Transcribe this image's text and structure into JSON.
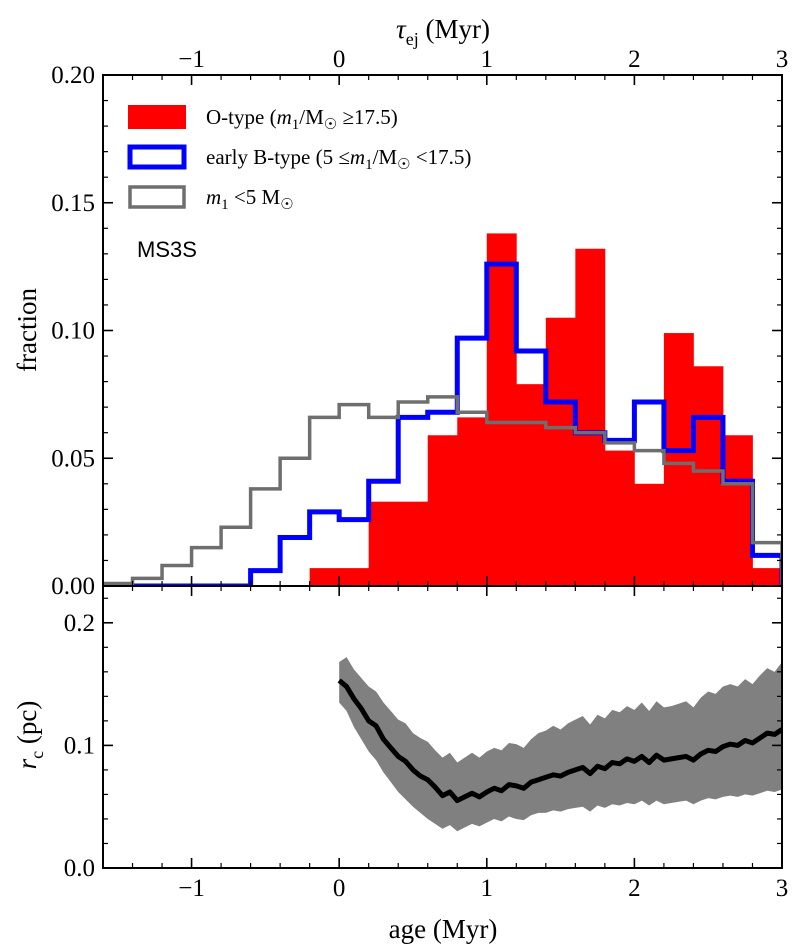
{
  "chart_data": [
    {
      "type": "bar",
      "name": "top-histogram",
      "xlabel_top": "τ_ej (Myr)",
      "ylabel": "fraction",
      "xlim": [
        -1.6,
        3.0
      ],
      "ylim": [
        0.0,
        0.2
      ],
      "yticks": [
        0.0,
        0.05,
        0.1,
        0.15,
        0.2
      ],
      "ytick_labels": [
        "0.00",
        "0.05",
        "0.10",
        "0.15",
        "0.20"
      ],
      "top_xticks": [
        -1,
        0,
        1,
        2,
        3
      ],
      "top_xtick_labels": [
        "−1",
        "0",
        "1",
        "2",
        "3"
      ],
      "annotation": "MS3S",
      "bin_width": 0.2,
      "bin_edges": [
        -1.6,
        -1.4,
        -1.2,
        -1.0,
        -0.8,
        -0.6,
        -0.4,
        -0.2,
        0.0,
        0.2,
        0.4,
        0.6,
        0.8,
        1.0,
        1.2,
        1.4,
        1.6,
        1.8,
        2.0,
        2.2,
        2.4,
        2.6,
        2.8,
        3.0
      ],
      "series": [
        {
          "name": "O-type",
          "legend": {
            "prefix": "O-type (",
            "var": "m",
            "sub": "1",
            "rel": "/M",
            "sun": "☉",
            "op": " ≥17.5)"
          },
          "style": "filled",
          "color": "#ff0000",
          "values": [
            0,
            0,
            0,
            0,
            0,
            0,
            0,
            0.007,
            0.007,
            0.033,
            0.033,
            0.059,
            0.066,
            0.138,
            0.079,
            0.105,
            0.132,
            0.053,
            0.04,
            0.099,
            0.086,
            0.059,
            0.007
          ]
        },
        {
          "name": "early B-type",
          "legend": {
            "prefix": "early B-type (5 ≤",
            "var": "m",
            "sub": "1",
            "rel": "/M",
            "sun": "☉",
            "op": " <17.5)"
          },
          "style": "step",
          "color": "#0000ff",
          "values": [
            0,
            0,
            0,
            0,
            0,
            0.006,
            0.019,
            0.029,
            0.026,
            0.041,
            0.066,
            0.068,
            0.097,
            0.126,
            0.092,
            0.072,
            0.06,
            0.057,
            0.072,
            0.053,
            0.066,
            0.041,
            0.012
          ]
        },
        {
          "name": "m1 < 5 Msun",
          "legend": {
            "prefix": "",
            "var": "m",
            "sub": "1",
            "rel": " <5 M",
            "sun": "☉",
            "op": ""
          },
          "style": "step",
          "color": "#6e6e6e",
          "values": [
            0.001,
            0.003,
            0.008,
            0.015,
            0.023,
            0.038,
            0.05,
            0.066,
            0.071,
            0.066,
            0.072,
            0.074,
            0.068,
            0.064,
            0.064,
            0.062,
            0.06,
            0.056,
            0.053,
            0.048,
            0.045,
            0.04,
            0.017
          ]
        }
      ]
    },
    {
      "type": "line",
      "name": "bottom-core-radius",
      "ylabel": "r_c (pc)",
      "xlabel": "age (Myr)",
      "xlim": [
        -1.6,
        3.0
      ],
      "ylim": [
        0.0,
        0.23
      ],
      "yticks": [
        0.0,
        0.1,
        0.2
      ],
      "ytick_labels": [
        "0.0",
        "0.1",
        "0.2"
      ],
      "xticks": [
        -1,
        0,
        1,
        2,
        3
      ],
      "xtick_labels": [
        "−1",
        "0",
        "1",
        "2",
        "3"
      ],
      "line_color": "#000000",
      "band_color": "#808080",
      "x": [
        0.0,
        0.05,
        0.1,
        0.15,
        0.2,
        0.25,
        0.3,
        0.35,
        0.4,
        0.45,
        0.5,
        0.55,
        0.6,
        0.65,
        0.7,
        0.75,
        0.8,
        0.85,
        0.9,
        0.95,
        1.0,
        1.05,
        1.1,
        1.15,
        1.2,
        1.25,
        1.3,
        1.35,
        1.4,
        1.45,
        1.5,
        1.55,
        1.6,
        1.65,
        1.7,
        1.75,
        1.8,
        1.85,
        1.9,
        1.95,
        2.0,
        2.05,
        2.1,
        2.15,
        2.2,
        2.25,
        2.3,
        2.35,
        2.4,
        2.45,
        2.5,
        2.55,
        2.6,
        2.65,
        2.7,
        2.75,
        2.8,
        2.85,
        2.9,
        2.95,
        3.0
      ],
      "y": [
        0.153,
        0.148,
        0.138,
        0.13,
        0.12,
        0.116,
        0.105,
        0.098,
        0.091,
        0.087,
        0.08,
        0.075,
        0.072,
        0.066,
        0.059,
        0.062,
        0.055,
        0.058,
        0.061,
        0.058,
        0.062,
        0.065,
        0.063,
        0.068,
        0.067,
        0.065,
        0.07,
        0.072,
        0.074,
        0.076,
        0.075,
        0.078,
        0.08,
        0.082,
        0.077,
        0.083,
        0.081,
        0.086,
        0.085,
        0.089,
        0.087,
        0.091,
        0.086,
        0.092,
        0.088,
        0.089,
        0.09,
        0.091,
        0.088,
        0.093,
        0.096,
        0.095,
        0.099,
        0.101,
        0.1,
        0.104,
        0.102,
        0.106,
        0.11,
        0.109,
        0.113
      ],
      "y_low": [
        0.135,
        0.128,
        0.115,
        0.105,
        0.095,
        0.088,
        0.078,
        0.07,
        0.062,
        0.056,
        0.05,
        0.045,
        0.04,
        0.036,
        0.032,
        0.035,
        0.03,
        0.033,
        0.036,
        0.034,
        0.037,
        0.04,
        0.038,
        0.042,
        0.04,
        0.039,
        0.043,
        0.045,
        0.045,
        0.047,
        0.046,
        0.048,
        0.049,
        0.05,
        0.046,
        0.051,
        0.049,
        0.052,
        0.051,
        0.053,
        0.052,
        0.055,
        0.051,
        0.055,
        0.052,
        0.053,
        0.054,
        0.055,
        0.052,
        0.055,
        0.057,
        0.056,
        0.058,
        0.059,
        0.058,
        0.06,
        0.059,
        0.061,
        0.063,
        0.062,
        0.064
      ],
      "y_high": [
        0.168,
        0.172,
        0.162,
        0.155,
        0.148,
        0.144,
        0.135,
        0.128,
        0.121,
        0.118,
        0.11,
        0.106,
        0.103,
        0.096,
        0.09,
        0.094,
        0.086,
        0.09,
        0.094,
        0.09,
        0.095,
        0.098,
        0.096,
        0.102,
        0.101,
        0.098,
        0.105,
        0.11,
        0.112,
        0.116,
        0.113,
        0.118,
        0.121,
        0.124,
        0.117,
        0.125,
        0.122,
        0.129,
        0.127,
        0.132,
        0.129,
        0.135,
        0.128,
        0.136,
        0.131,
        0.132,
        0.134,
        0.136,
        0.131,
        0.139,
        0.144,
        0.142,
        0.148,
        0.15,
        0.148,
        0.154,
        0.15,
        0.157,
        0.163,
        0.16,
        0.168
      ]
    }
  ]
}
